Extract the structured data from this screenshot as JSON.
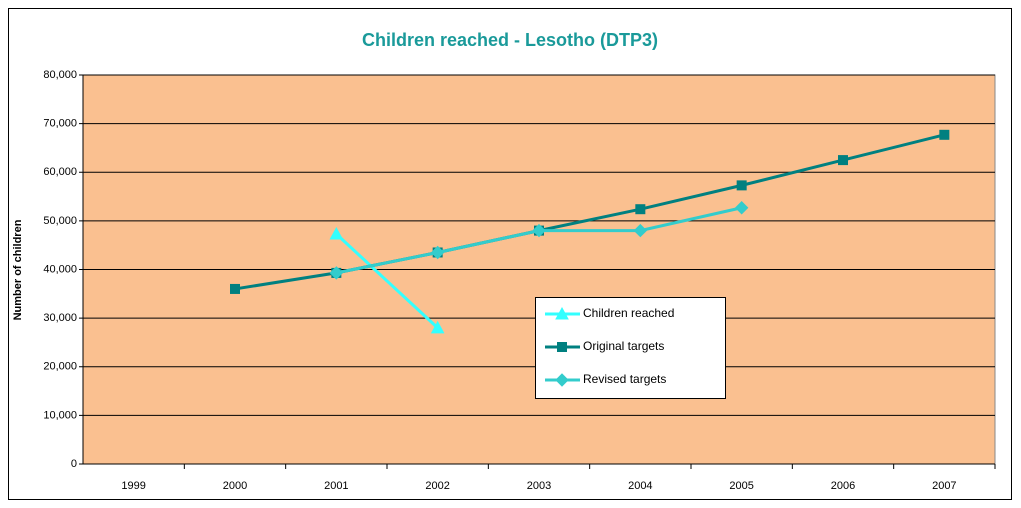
{
  "chart_data": {
    "type": "line",
    "title": "Children reached - Lesotho (DTP3)",
    "y_label": "Number of children",
    "categories": [
      "1999",
      "2000",
      "2001",
      "2002",
      "2003",
      "2004",
      "2005",
      "2006",
      "2007"
    ],
    "series": [
      {
        "name": "Children reached",
        "color": "#33ffff",
        "marker": "triangle",
        "values": [
          null,
          null,
          47300,
          28000,
          null,
          null,
          null,
          null,
          null
        ]
      },
      {
        "name": "Original targets",
        "color": "#008080",
        "marker": "square",
        "values": [
          null,
          36000,
          39300,
          43500,
          48000,
          52400,
          57300,
          62500,
          67700
        ]
      },
      {
        "name": "Revised targets",
        "color": "#33cccc",
        "marker": "diamond",
        "values": [
          null,
          null,
          39300,
          43500,
          48000,
          48000,
          52700,
          null,
          null
        ]
      }
    ],
    "ylim": [
      0,
      80000
    ],
    "yticks": [
      0,
      {
        "value": 10000,
        "label": "10,000"
      },
      {
        "value": 20000,
        "label": "20,000"
      },
      {
        "value": 30000,
        "label": "30,000"
      },
      {
        "value": 40000,
        "label": "40,000"
      },
      {
        "value": 50000,
        "label": "50,000"
      },
      {
        "value": 60000,
        "label": "60,000"
      },
      {
        "value": 70000,
        "label": "70,000"
      },
      {
        "value": 80000,
        "label": "80,000"
      }
    ],
    "grid": true,
    "legend": "center",
    "plot_background": "#fac090"
  }
}
